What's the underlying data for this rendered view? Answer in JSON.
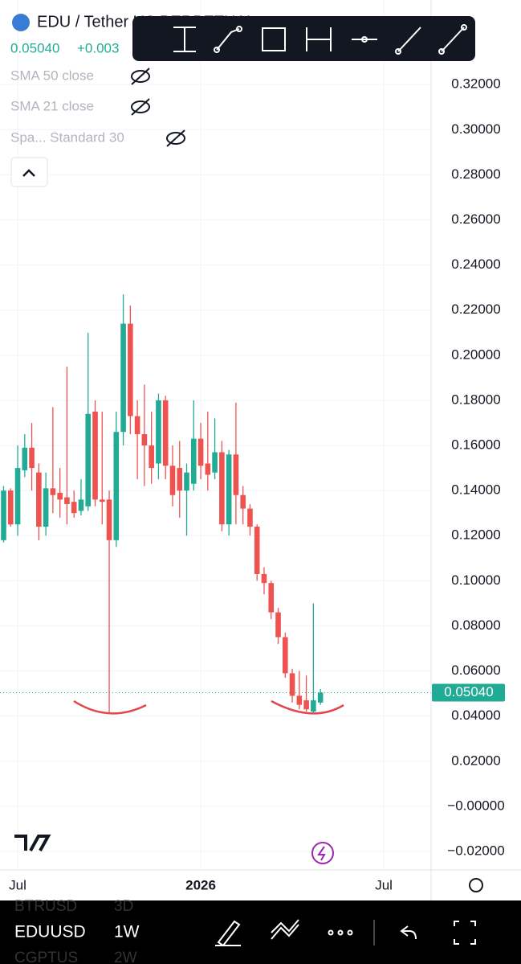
{
  "header": {
    "symbol": "EDU / Tether US PERPETUAL",
    "change": "+0.003",
    "indicators": [
      "SMA 50 close",
      "SMA 21 close",
      "Spa... Standard 30"
    ]
  },
  "chart_data": {
    "type": "candlestick",
    "up_color": "#22ab94",
    "down_color": "#ef5350",
    "open": [
      0.118,
      0.14,
      0.125,
      0.149,
      0.159,
      0.148,
      0.124,
      0.141,
      0.139,
      0.137,
      0.135,
      0.131,
      0.133,
      0.175,
      0.136,
      0.136,
      0.118,
      0.166,
      0.214,
      0.173,
      0.165,
      0.16,
      0.152,
      0.18,
      0.151,
      0.15,
      0.14,
      0.143,
      0.163,
      0.152,
      0.148,
      0.157,
      0.125,
      0.156,
      0.138,
      0.132,
      0.124,
      0.103,
      0.099,
      0.086,
      0.075,
      0.059,
      0.049,
      0.047,
      0.042,
      0.046
    ],
    "high": [
      0.142,
      0.141,
      0.16,
      0.165,
      0.17,
      0.152,
      0.148,
      0.177,
      0.15,
      0.195,
      0.14,
      0.145,
      0.21,
      0.18,
      0.175,
      0.14,
      0.175,
      0.227,
      0.222,
      0.18,
      0.187,
      0.175,
      0.183,
      0.182,
      0.16,
      0.162,
      0.152,
      0.18,
      0.17,
      0.175,
      0.172,
      0.162,
      0.158,
      0.179,
      0.142,
      0.134,
      0.125,
      0.106,
      0.1,
      0.088,
      0.077,
      0.061,
      0.06,
      0.058,
      0.09,
      0.052
    ],
    "low": [
      0.117,
      0.124,
      0.12,
      0.146,
      0.14,
      0.118,
      0.12,
      0.13,
      0.128,
      0.125,
      0.128,
      0.129,
      0.131,
      0.133,
      0.125,
      0.0414,
      0.115,
      0.16,
      0.165,
      0.145,
      0.142,
      0.143,
      0.145,
      0.145,
      0.133,
      0.128,
      0.12,
      0.14,
      0.145,
      0.14,
      0.145,
      0.122,
      0.12,
      0.125,
      0.125,
      0.12,
      0.1,
      0.094,
      0.083,
      0.072,
      0.057,
      0.046,
      0.043,
      0.042,
      0.041,
      0.045
    ],
    "close": [
      0.14,
      0.125,
      0.15,
      0.159,
      0.15,
      0.124,
      0.141,
      0.138,
      0.136,
      0.134,
      0.13,
      0.136,
      0.174,
      0.136,
      0.135,
      0.118,
      0.166,
      0.214,
      0.173,
      0.165,
      0.16,
      0.15,
      0.18,
      0.151,
      0.138,
      0.14,
      0.148,
      0.163,
      0.151,
      0.147,
      0.157,
      0.125,
      0.156,
      0.138,
      0.132,
      0.124,
      0.103,
      0.099,
      0.086,
      0.075,
      0.059,
      0.049,
      0.045,
      0.043,
      0.047,
      0.0504
    ],
    "last_price": {
      "value": 0.0504,
      "label": "0.05040"
    },
    "ylim": [
      -0.0282,
      0.3575
    ],
    "yticks": [
      {
        "value": -0.02,
        "label": "−0.02000"
      },
      {
        "value": 0,
        "label": "−0.00000"
      },
      {
        "value": 0.02,
        "label": "0.02000"
      },
      {
        "value": 0.04,
        "label": "0.04000"
      },
      {
        "value": 0.06,
        "label": "0.06000"
      },
      {
        "value": 0.08,
        "label": "0.08000"
      },
      {
        "value": 0.1,
        "label": "0.10000"
      },
      {
        "value": 0.12,
        "label": "0.12000"
      },
      {
        "value": 0.14,
        "label": "0.14000"
      },
      {
        "value": 0.16,
        "label": "0.16000"
      },
      {
        "value": 0.18,
        "label": "0.18000"
      },
      {
        "value": 0.2,
        "label": "0.20000"
      },
      {
        "value": 0.22,
        "label": "0.22000"
      },
      {
        "value": 0.24,
        "label": "0.24000"
      },
      {
        "value": 0.26,
        "label": "0.26000"
      },
      {
        "value": 0.28,
        "label": "0.28000"
      },
      {
        "value": 0.3,
        "label": "0.30000"
      },
      {
        "value": 0.32,
        "label": "0.32000"
      }
    ],
    "xticks": [
      {
        "value": 2,
        "label": "Jul"
      },
      {
        "value": 28,
        "label": "2026"
      },
      {
        "value": 54,
        "label": "Jul"
      }
    ],
    "grid": true
  },
  "bottom_bar": {
    "symbols": [
      {
        "name": "BTRUSD",
        "interval": "3D"
      },
      {
        "name": "EDUUSD",
        "interval": "1W"
      },
      {
        "name": "CGPTUS",
        "interval": "2W"
      }
    ]
  }
}
